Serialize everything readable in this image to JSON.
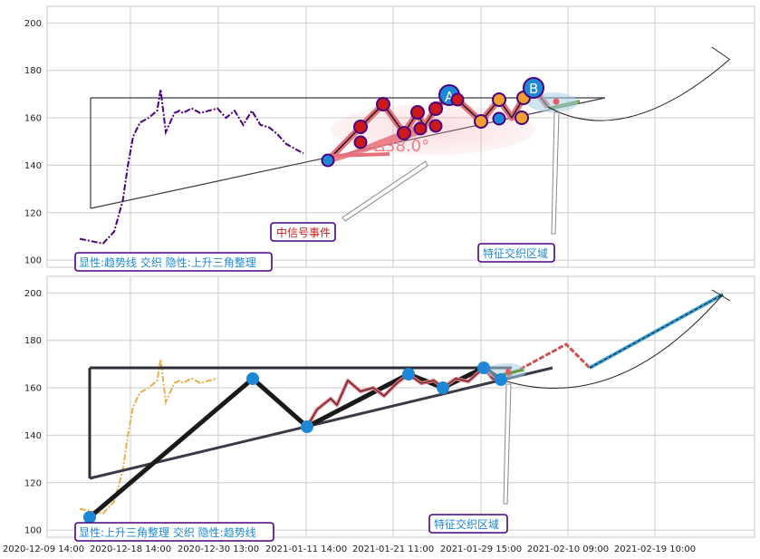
{
  "colors": {
    "grid": "#cccccc",
    "price_top": "#4b0082",
    "price_bottom": "#e8b04a",
    "triangle": "#3a3a48",
    "wave": "#e8707a",
    "node_blue": "#1e88d6",
    "node_red": "#cc1a1a",
    "node_orange": "#f0a030",
    "projection_red": "#d05050",
    "projection_blue": "#3a9fd8",
    "label_border": "#4b0082"
  },
  "x_ticks": [
    "2020-12-09 14:00",
    "2020-12-18 14:00",
    "2020-12-30 13:00",
    "2021-01-11 14:00",
    "2021-01-21 11:00",
    "2021-01-29 15:00",
    "2021-02-10 09:00",
    "2021-02-19 10:00"
  ],
  "chart_data": [
    {
      "type": "line",
      "panel": "top",
      "ylim": [
        97,
        207
      ],
      "yticks": [
        100,
        120,
        140,
        160,
        180,
        200
      ],
      "x": [
        0,
        1.35,
        2.0,
        2.5,
        2.8,
        3.1,
        3.5,
        4.0,
        4.5,
        4.7,
        5.0,
        5.5,
        5.8,
        6.0,
        6.5,
        7.0,
        7.5,
        8.0,
        8.5,
        9.0,
        9.5,
        10.0,
        10.5,
        11.0,
        11.5,
        12.0,
        12.5,
        13.0
      ],
      "y": [
        109,
        107,
        112,
        125,
        140,
        152,
        158,
        160,
        163,
        172,
        154,
        162,
        163,
        162,
        164,
        162,
        163,
        164,
        160,
        163,
        157,
        163,
        157,
        156,
        153,
        149,
        147,
        145
      ],
      "annotations": {
        "angle_label": "∆38.0°",
        "signal_label": "中信号事件",
        "zone_label": "特征交织区域",
        "pattern_label": "显性:趋势线 交织 隐性:上升三角整理",
        "point_labels": [
          "A",
          "B"
        ]
      }
    },
    {
      "type": "line",
      "panel": "bottom",
      "ylim": [
        97,
        207
      ],
      "yticks": [
        100,
        120,
        140,
        160,
        180,
        200
      ],
      "x": [
        0,
        1.35,
        2.0,
        2.5,
        2.8,
        3.1,
        3.5,
        4.0,
        4.5,
        4.7,
        5.0,
        5.5,
        5.8,
        6.0,
        6.5,
        7.0,
        7.5,
        8.0
      ],
      "y": [
        109,
        107,
        112,
        125,
        140,
        152,
        158,
        160,
        163,
        172,
        154,
        162,
        163,
        162,
        164,
        162,
        163,
        164
      ],
      "annotations": {
        "zone_label": "特征交织区域",
        "pattern_label": "显性:上升三角整理 交织 隐性:趋势线"
      }
    }
  ]
}
